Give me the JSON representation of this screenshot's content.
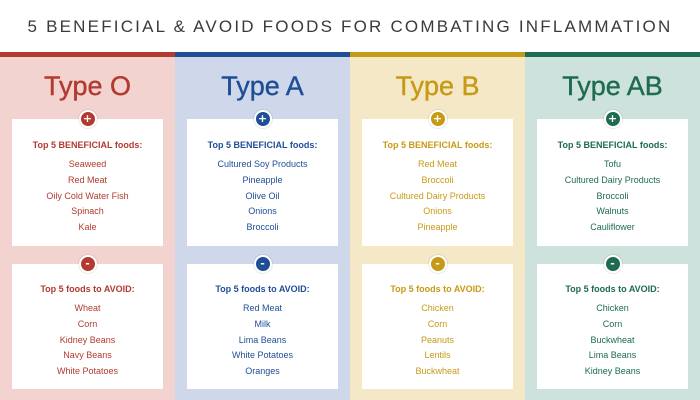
{
  "title": "5 BENEFICIAL & AVOID FOODS FOR COMBATING INFLAMMATION",
  "badges": {
    "plus": "+",
    "minus": "-"
  },
  "columns": [
    {
      "name": "Type O",
      "accent": "#b23a2f",
      "background": "#f2d3d0",
      "beneficial_heading": "Top 5 BENEFICIAL foods:",
      "beneficial": [
        "Seaweed",
        "Red Meat",
        "Oily Cold Water Fish",
        "Spinach",
        "Kale"
      ],
      "avoid_heading": "Top 5 foods to AVOID:",
      "avoid": [
        "Wheat",
        "Corn",
        "Kidney Beans",
        "Navy Beans",
        "White Potatoes"
      ]
    },
    {
      "name": "Type A",
      "accent": "#1f4e96",
      "background": "#cfd8ea",
      "beneficial_heading": "Top 5 BENEFICIAL foods:",
      "beneficial": [
        "Cultured Soy Products",
        "Pineapple",
        "Olive Oil",
        "Onions",
        "Broccoli"
      ],
      "avoid_heading": "Top 5 foods to AVOID:",
      "avoid": [
        "Red Meat",
        "Milk",
        "Lima Beans",
        "White Potatoes",
        "Oranges"
      ]
    },
    {
      "name": "Type B",
      "accent": "#c79a16",
      "background": "#f5e8c6",
      "beneficial_heading": "Top 5 BENEFICIAL foods:",
      "beneficial": [
        "Red Meat",
        "Broccoli",
        "Cultured Dairy Products",
        "Onions",
        "Pineapple"
      ],
      "avoid_heading": "Top 5 foods to AVOID:",
      "avoid": [
        "Chicken",
        "Corn",
        "Peanuts",
        "Lentils",
        "Buckwheat"
      ]
    },
    {
      "name": "Type AB",
      "accent": "#1e6b4f",
      "background": "#cde2dc",
      "beneficial_heading": "Top 5 BENEFICIAL foods:",
      "beneficial": [
        "Tofu",
        "Cultured Dairy Products",
        "Broccoli",
        "Walnuts",
        "Cauliflower"
      ],
      "avoid_heading": "Top 5 foods to AVOID:",
      "avoid": [
        "Chicken",
        "Corn",
        "Buckwheat",
        "Lima Beans",
        "Kidney Beans"
      ]
    }
  ]
}
